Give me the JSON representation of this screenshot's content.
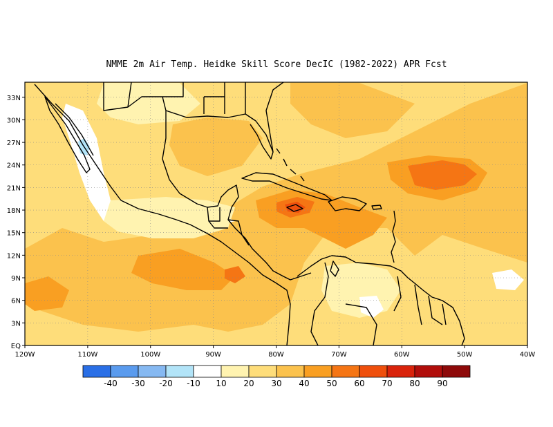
{
  "title": "NMME  2m Air Temp. Heidke Skill Score DecIC (1982-2022) APR Fcst",
  "map": {
    "lon_range": [
      -120,
      -40
    ],
    "lat_range": [
      0,
      35
    ],
    "x_ticks": [
      "120W",
      "110W",
      "100W",
      "90W",
      "80W",
      "70W",
      "60W",
      "50W",
      "40W"
    ],
    "y_ticks": [
      "EQ",
      "3N",
      "6N",
      "9N",
      "12N",
      "15N",
      "18N",
      "21N",
      "24N",
      "27N",
      "30N",
      "33N"
    ],
    "grid": "dotted"
  },
  "colorbar": {
    "labels": [
      "-40",
      "-30",
      "-20",
      "-10",
      "10",
      "20",
      "30",
      "40",
      "50",
      "60",
      "70",
      "80",
      "90"
    ],
    "colors": [
      "#2a6fe6",
      "#5a9bee",
      "#86b9f2",
      "#b2e4f8",
      "#ffffff",
      "#fff3b0",
      "#fedd7a",
      "#fbc24d",
      "#f99f22",
      "#f57514",
      "#ef4f0c",
      "#d9230b",
      "#b10e0b",
      "#8e0a0a"
    ]
  },
  "palette": {
    "land_line": "#000000",
    "base_field": "#fbc24d"
  }
}
